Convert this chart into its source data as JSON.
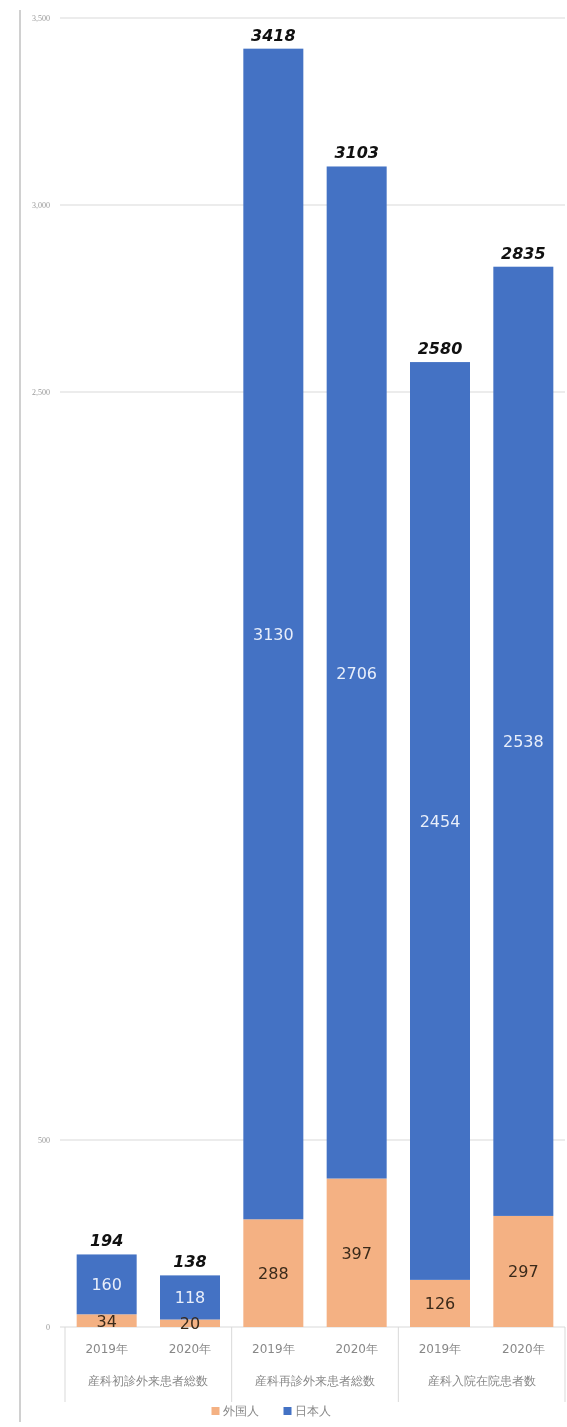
{
  "chart_data": {
    "type": "bar",
    "stacked": true,
    "categories": [
      "2019年",
      "2020年",
      "2019年",
      "2020年",
      "2019年",
      "2020年"
    ],
    "series": [
      {
        "name": "外国人",
        "color": "#f4b183",
        "values": [
          34,
          20,
          288,
          397,
          126,
          297
        ]
      },
      {
        "name": "日本人",
        "color": "#4472c4",
        "values": [
          160,
          118,
          3130,
          2706,
          2454,
          2538
        ]
      }
    ],
    "ylim": [
      0,
      3500
    ],
    "yticks": [
      0,
      500,
      {
        "value": 2500,
        "label": "2,500"
      },
      {
        "value": 3000,
        "label": "3,000"
      },
      {
        "value": 3500,
        "label": "3,500"
      }
    ],
    "grid": "y",
    "legend": "bottom",
    "data_labels": true,
    "totals": [
      "194",
      "138",
      "3418",
      "3103",
      "2580",
      "2835"
    ],
    "annotations": [
      "産科初診外来患者総数",
      "産科再診外来患者総数",
      "産科入院在院患者数"
    ]
  }
}
